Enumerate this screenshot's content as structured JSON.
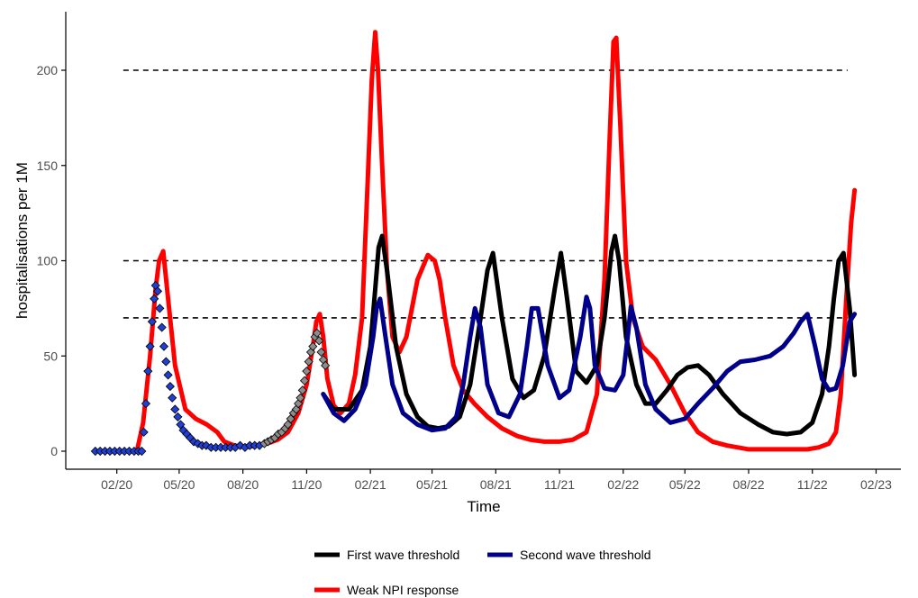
{
  "chart_data": {
    "type": "line",
    "title": "",
    "xlabel": "Time",
    "ylabel": "hospitalisations per 1M",
    "x_ticks": [
      "02/20",
      "05/20",
      "08/20",
      "11/20",
      "02/21",
      "05/21",
      "08/21",
      "11/21",
      "02/22",
      "05/22",
      "08/22",
      "11/22",
      "02/23"
    ],
    "y_ticks": [
      0,
      50,
      100,
      150,
      200
    ],
    "xlim": [
      "2019-12-01",
      "2023-03-01"
    ],
    "ylim": [
      0,
      225
    ],
    "grid": false,
    "legend_position": "bottom",
    "thresholds": [
      {
        "y": 200,
        "from": "2020-01-01",
        "to": "2022-12-31"
      },
      {
        "y": 100,
        "from": "2020-01-01",
        "to": "2022-12-31"
      },
      {
        "y": 70,
        "from": "2020-01-01",
        "to": "2022-12-31"
      }
    ],
    "series": [
      {
        "name": "Weak NPI response",
        "color": "#ff0000",
        "x": [
          "2020-03-01",
          "2020-03-10",
          "2020-03-20",
          "2020-03-28",
          "2020-04-02",
          "2020-04-08",
          "2020-04-15",
          "2020-04-25",
          "2020-05-10",
          "2020-05-25",
          "2020-06-10",
          "2020-06-25",
          "2020-07-05",
          "2020-07-20",
          "2020-08-05",
          "2020-08-20",
          "2020-09-05",
          "2020-09-20",
          "2020-10-05",
          "2020-10-20",
          "2020-11-01",
          "2020-11-10",
          "2020-11-15",
          "2020-11-20",
          "2020-11-25",
          "2020-12-01",
          "2020-12-10",
          "2020-12-20",
          "2021-01-01",
          "2021-01-10",
          "2021-01-20",
          "2021-01-28",
          "2021-02-03",
          "2021-02-08",
          "2021-02-12",
          "2021-02-18",
          "2021-02-25",
          "2021-03-05",
          "2021-03-15",
          "2021-03-25",
          "2021-04-10",
          "2021-04-25",
          "2021-05-05",
          "2021-05-12",
          "2021-05-20",
          "2021-06-01",
          "2021-06-15",
          "2021-07-01",
          "2021-07-20",
          "2021-08-10",
          "2021-09-01",
          "2021-09-20",
          "2021-10-10",
          "2021-11-01",
          "2021-11-20",
          "2021-12-10",
          "2021-12-25",
          "2022-01-05",
          "2022-01-12",
          "2022-01-18",
          "2022-01-22",
          "2022-01-28",
          "2022-02-05",
          "2022-02-15",
          "2022-03-01",
          "2022-03-20",
          "2022-04-10",
          "2022-05-01",
          "2022-05-20",
          "2022-06-10",
          "2022-07-01",
          "2022-08-01",
          "2022-09-01",
          "2022-10-01",
          "2022-10-25",
          "2022-11-10",
          "2022-11-25",
          "2022-12-05",
          "2022-12-12",
          "2022-12-20",
          "2022-12-27",
          "2023-01-01"
        ],
        "y": [
          0,
          15,
          50,
          85,
          100,
          105,
          80,
          45,
          22,
          17,
          14,
          10,
          5,
          3,
          2,
          3,
          4,
          6,
          10,
          20,
          35,
          55,
          68,
          72,
          60,
          38,
          24,
          20,
          25,
          40,
          70,
          140,
          195,
          220,
          200,
          150,
          95,
          60,
          52,
          60,
          90,
          103,
          100,
          90,
          70,
          45,
          32,
          25,
          18,
          12,
          8,
          6,
          5,
          5,
          6,
          10,
          30,
          90,
          160,
          215,
          217,
          170,
          100,
          70,
          55,
          48,
          35,
          20,
          10,
          5,
          3,
          1,
          1,
          1,
          1,
          2,
          4,
          10,
          30,
          80,
          120,
          137
        ]
      },
      {
        "name": "First wave threshold",
        "color": "#000000",
        "x": [
          "2020-11-25",
          "2020-12-10",
          "2021-01-01",
          "2021-01-20",
          "2021-02-01",
          "2021-02-08",
          "2021-02-13",
          "2021-02-18",
          "2021-02-25",
          "2021-03-10",
          "2021-03-25",
          "2021-04-10",
          "2021-04-25",
          "2021-05-10",
          "2021-05-25",
          "2021-06-10",
          "2021-06-25",
          "2021-07-10",
          "2021-07-20",
          "2021-07-28",
          "2021-08-10",
          "2021-08-25",
          "2021-09-10",
          "2021-09-25",
          "2021-10-10",
          "2021-10-25",
          "2021-11-03",
          "2021-11-12",
          "2021-11-25",
          "2021-12-10",
          "2021-12-25",
          "2022-01-05",
          "2022-01-15",
          "2022-01-20",
          "2022-01-26",
          "2022-02-05",
          "2022-02-20",
          "2022-03-05",
          "2022-03-20",
          "2022-04-05",
          "2022-04-20",
          "2022-05-05",
          "2022-05-20",
          "2022-06-05",
          "2022-06-25",
          "2022-07-20",
          "2022-08-15",
          "2022-09-05",
          "2022-09-25",
          "2022-10-15",
          "2022-11-01",
          "2022-11-15",
          "2022-11-25",
          "2022-12-02",
          "2022-12-09",
          "2022-12-16",
          "2022-12-25",
          "2023-01-01"
        ],
        "y": [
          30,
          22,
          22,
          32,
          55,
          85,
          107,
          113,
          95,
          55,
          30,
          18,
          13,
          12,
          13,
          18,
          35,
          70,
          95,
          104,
          70,
          38,
          28,
          32,
          50,
          85,
          104,
          80,
          42,
          36,
          45,
          70,
          105,
          113,
          100,
          60,
          35,
          25,
          25,
          32,
          40,
          44,
          45,
          40,
          30,
          20,
          14,
          10,
          9,
          10,
          15,
          30,
          55,
          80,
          100,
          104,
          75,
          40
        ]
      },
      {
        "name": "Second wave threshold",
        "color": "#00008b",
        "x": [
          "2020-11-25",
          "2020-12-10",
          "2020-12-25",
          "2021-01-10",
          "2021-01-25",
          "2021-02-05",
          "2021-02-10",
          "2021-02-15",
          "2021-02-22",
          "2021-03-05",
          "2021-03-20",
          "2021-04-10",
          "2021-05-01",
          "2021-05-20",
          "2021-06-05",
          "2021-06-15",
          "2021-06-25",
          "2021-07-02",
          "2021-07-10",
          "2021-07-20",
          "2021-08-05",
          "2021-08-20",
          "2021-09-05",
          "2021-09-15",
          "2021-09-22",
          "2021-10-01",
          "2021-10-15",
          "2021-11-01",
          "2021-11-15",
          "2021-12-01",
          "2021-12-10",
          "2021-12-15",
          "2021-12-22",
          "2022-01-05",
          "2022-01-20",
          "2022-02-01",
          "2022-02-08",
          "2022-02-12",
          "2022-02-20",
          "2022-03-05",
          "2022-03-20",
          "2022-04-10",
          "2022-05-01",
          "2022-05-20",
          "2022-06-10",
          "2022-07-01",
          "2022-07-20",
          "2022-08-10",
          "2022-09-01",
          "2022-09-20",
          "2022-10-05",
          "2022-10-15",
          "2022-10-25",
          "2022-11-05",
          "2022-11-15",
          "2022-11-25",
          "2022-12-05",
          "2022-12-15",
          "2022-12-25",
          "2023-01-01"
        ],
        "y": [
          30,
          20,
          16,
          22,
          35,
          60,
          75,
          80,
          62,
          35,
          20,
          14,
          11,
          12,
          18,
          35,
          60,
          75,
          65,
          35,
          20,
          18,
          30,
          55,
          75,
          75,
          45,
          28,
          32,
          60,
          81,
          75,
          45,
          33,
          32,
          40,
          62,
          76,
          65,
          35,
          22,
          15,
          17,
          25,
          33,
          42,
          47,
          48,
          50,
          55,
          62,
          68,
          72,
          55,
          38,
          32,
          33,
          45,
          68,
          72
        ]
      }
    ],
    "observed_first_wave": {
      "x": [
        "2020-01-01",
        "2020-01-08",
        "2020-01-15",
        "2020-01-22",
        "2020-01-29",
        "2020-02-05",
        "2020-02-12",
        "2020-02-19",
        "2020-02-26",
        "2020-03-03",
        "2020-03-08",
        "2020-03-11",
        "2020-03-14",
        "2020-03-17",
        "2020-03-20",
        "2020-03-23",
        "2020-03-26",
        "2020-03-28",
        "2020-03-31",
        "2020-04-03",
        "2020-04-06",
        "2020-04-09",
        "2020-04-12",
        "2020-04-15",
        "2020-04-18",
        "2020-04-21",
        "2020-04-25",
        "2020-04-29",
        "2020-05-03",
        "2020-05-07",
        "2020-05-12",
        "2020-05-17",
        "2020-05-22",
        "2020-05-28",
        "2020-06-03",
        "2020-06-09",
        "2020-06-16",
        "2020-06-23",
        "2020-06-30",
        "2020-07-07",
        "2020-07-14",
        "2020-07-21",
        "2020-07-28",
        "2020-08-04",
        "2020-08-11",
        "2020-08-18",
        "2020-08-25"
      ],
      "y": [
        0,
        0,
        0,
        0,
        0,
        0,
        0,
        0,
        0,
        0,
        0,
        10,
        25,
        42,
        55,
        68,
        80,
        87,
        84,
        75,
        65,
        55,
        47,
        40,
        34,
        28,
        22,
        18,
        14,
        11,
        9,
        7,
        5,
        4,
        3,
        3,
        2,
        2,
        2,
        2,
        2,
        2,
        3,
        2,
        3,
        3,
        3
      ]
    },
    "observed_second_wave": {
      "x": [
        "2020-09-01",
        "2020-09-06",
        "2020-09-11",
        "2020-09-16",
        "2020-09-21",
        "2020-09-26",
        "2020-10-01",
        "2020-10-05",
        "2020-10-09",
        "2020-10-13",
        "2020-10-17",
        "2020-10-20",
        "2020-10-23",
        "2020-10-26",
        "2020-10-29",
        "2020-11-01",
        "2020-11-04",
        "2020-11-07",
        "2020-11-10",
        "2020-11-13",
        "2020-11-16",
        "2020-11-19",
        "2020-11-22",
        "2020-11-25",
        "2020-11-28"
      ],
      "y": [
        4,
        5,
        6,
        7,
        9,
        10,
        12,
        14,
        17,
        20,
        22,
        25,
        28,
        32,
        37,
        42,
        47,
        52,
        55,
        60,
        62,
        58,
        52,
        48,
        45
      ]
    },
    "legend": [
      {
        "label": "First wave threshold",
        "color": "#000000"
      },
      {
        "label": "Second wave threshold",
        "color": "#00008b"
      },
      {
        "label": "Weak NPI response",
        "color": "#ff0000"
      }
    ]
  }
}
